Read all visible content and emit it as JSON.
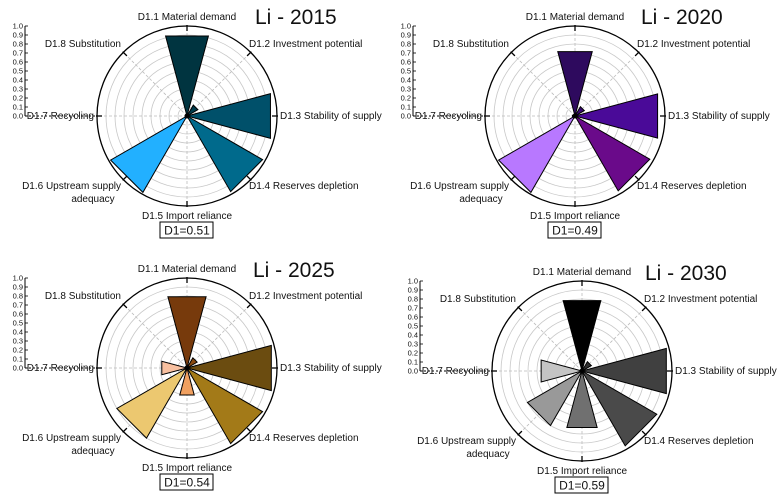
{
  "chart_data": [
    {
      "type": "polar-bar",
      "title": "Li - 2015",
      "categories": [
        "D1.1 Material demand",
        "D1.2 Investment potential",
        "D1.3 Stability of supply",
        "D1.4 Reserves depletion",
        "D1.5 Import reliance",
        "D1.6 Upstream supply adequacy",
        "D1.7 Recycling",
        "D1.8 Substitution"
      ],
      "values": [
        0.92,
        0.14,
        0.96,
        0.97,
        0.0,
        0.98,
        0.0,
        0.0
      ],
      "colors": [
        "#003440",
        "#003c4c",
        "#00506a",
        "#006a8c",
        "#00779c",
        "#22b0ff",
        "#9fd8ff",
        "#cfeeff"
      ],
      "rlim": [
        0,
        1.0
      ],
      "rticks": [
        "0.0",
        "0.1",
        "0.2",
        "0.3",
        "0.4",
        "0.5",
        "0.6",
        "0.7",
        "0.8",
        "0.9",
        "1.0"
      ],
      "summary": "D1=0.51"
    },
    {
      "type": "polar-bar",
      "title": "Li - 2020",
      "categories": [
        "D1.1 Material demand",
        "D1.2 Investment potential",
        "D1.3 Stability of supply",
        "D1.4 Reserves depletion",
        "D1.5 Import reliance",
        "D1.6 Upstream supply adequacy",
        "D1.7 Recycling",
        "D1.8 Substitution"
      ],
      "values": [
        0.74,
        0.12,
        0.95,
        0.96,
        0.0,
        0.98,
        0.03,
        0.0
      ],
      "colors": [
        "#2e0a5e",
        "#3a0a72",
        "#4a0a98",
        "#6a0a8a",
        "#8a3ac8",
        "#b878ff",
        "#d8b0ff",
        "#ead8ff"
      ],
      "rlim": [
        0,
        1.0
      ],
      "rticks": [
        "0.0",
        "0.1",
        "0.2",
        "0.3",
        "0.4",
        "0.5",
        "0.6",
        "0.7",
        "0.8",
        "0.9",
        "1.0"
      ],
      "summary": "D1=0.49"
    },
    {
      "type": "polar-bar",
      "title": "Li - 2025",
      "categories": [
        "D1.1 Material demand",
        "D1.2 Investment potential",
        "D1.3 Stability of supply",
        "D1.4 Reserves depletion",
        "D1.5 Import reliance",
        "D1.6 Upstream supply adequacy",
        "D1.7 Recycling",
        "D1.8 Substitution"
      ],
      "values": [
        0.82,
        0.13,
        0.97,
        0.97,
        0.31,
        0.9,
        0.29,
        0.0
      ],
      "colors": [
        "#773a0c",
        "#8a4a10",
        "#6b4c10",
        "#a37a18",
        "#f0a060",
        "#ecc870",
        "#f8c0a0",
        "#fce0c8"
      ],
      "rlim": [
        0,
        1.0
      ],
      "rticks": [
        "0.0",
        "0.1",
        "0.2",
        "0.3",
        "0.4",
        "0.5",
        "0.6",
        "0.7",
        "0.8",
        "0.9",
        "1.0"
      ],
      "summary": "D1=0.54"
    },
    {
      "type": "polar-bar",
      "title": "Li - 2030",
      "categories": [
        "D1.1 Material demand",
        "D1.2 Investment potential",
        "D1.3 Stability of supply",
        "D1.4 Reserves depletion",
        "D1.5 Import reliance",
        "D1.6 Upstream supply adequacy",
        "D1.7 Recycling",
        "D1.8 Substitution"
      ],
      "values": [
        0.81,
        0.12,
        0.97,
        0.96,
        0.65,
        0.7,
        0.47,
        0.0
      ],
      "colors": [
        "#000000",
        "#303030",
        "#404040",
        "#4a4a4a",
        "#707070",
        "#999999",
        "#c4c4c4",
        "#dddddd"
      ],
      "rlim": [
        0,
        1.0
      ],
      "rticks": [
        "0.0",
        "0.1",
        "0.2",
        "0.3",
        "0.4",
        "0.5",
        "0.6",
        "0.7",
        "0.8",
        "0.9",
        "1.0"
      ],
      "summary": "D1=0.59"
    }
  ]
}
